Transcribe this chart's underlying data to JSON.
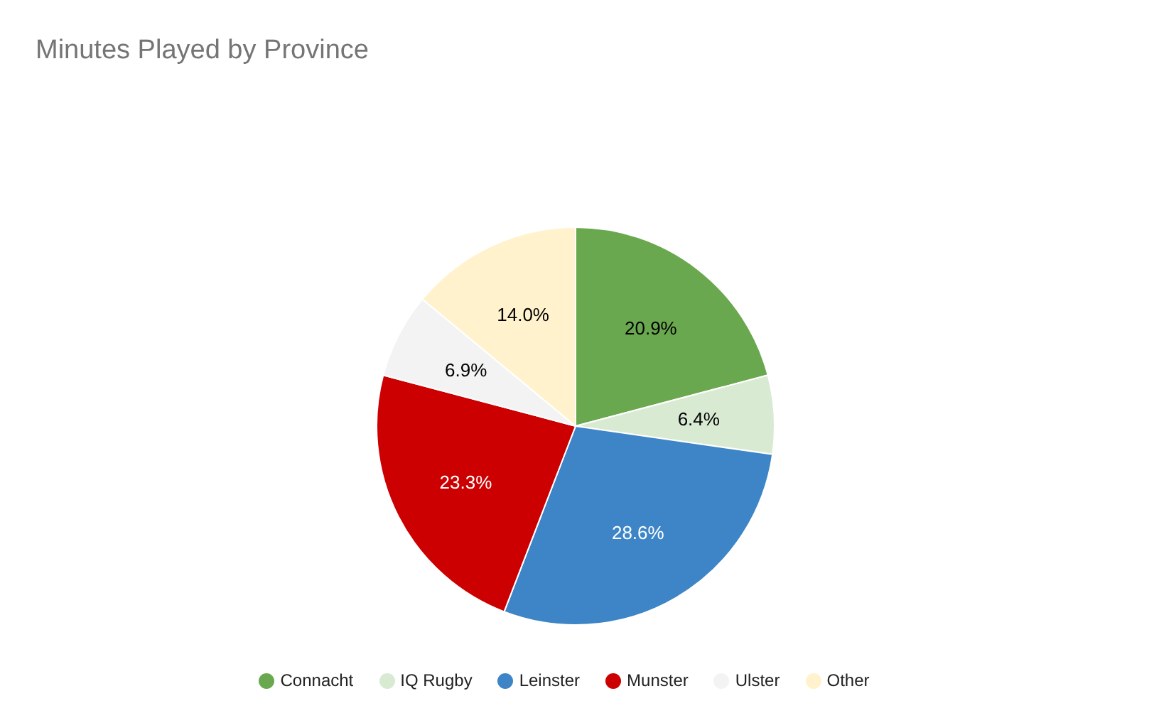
{
  "chart_data": {
    "type": "pie",
    "title": "Minutes Played by Province",
    "categories": [
      "Connacht",
      "IQ Rugby",
      "Leinster",
      "Munster",
      "Ulster",
      "Other"
    ],
    "values": [
      20.9,
      6.4,
      28.6,
      23.3,
      6.9,
      14.0
    ],
    "colors": [
      "#6aa84f",
      "#d9ead3",
      "#3d85c6",
      "#cc0000",
      "#f3f3f3",
      "#fff2cc"
    ],
    "value_labels": [
      "20.9%",
      "6.4%",
      "28.6%",
      "23.3%",
      "6.9%",
      "14.0%"
    ],
    "legend": "bottom"
  }
}
